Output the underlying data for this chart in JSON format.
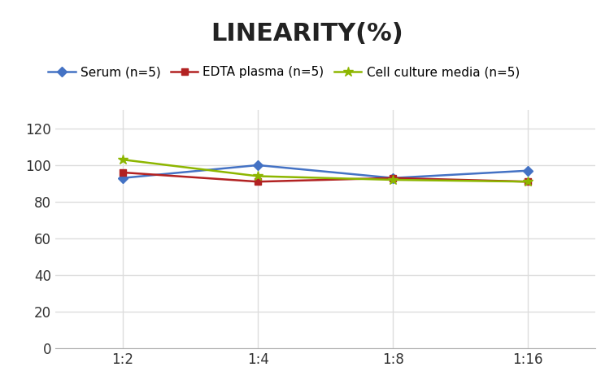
{
  "title": "LINEARITY(%)",
  "title_fontsize": 22,
  "title_fontweight": "bold",
  "x_labels": [
    "1:2",
    "1:4",
    "1:8",
    "1:16"
  ],
  "x_positions": [
    0,
    1,
    2,
    3
  ],
  "series": [
    {
      "label": "Serum (n=5)",
      "values": [
        93,
        100,
        93,
        97
      ],
      "color": "#4472C4",
      "marker": "D",
      "marker_size": 6,
      "linewidth": 1.8
    },
    {
      "label": "EDTA plasma (n=5)",
      "values": [
        96,
        91,
        93,
        91
      ],
      "color": "#B22222",
      "marker": "s",
      "marker_size": 6,
      "linewidth": 1.8
    },
    {
      "label": "Cell culture media (n=5)",
      "values": [
        103,
        94,
        92,
        91
      ],
      "color": "#8DB600",
      "marker": "*",
      "marker_size": 9,
      "linewidth": 1.8
    }
  ],
  "ylim": [
    0,
    130
  ],
  "yticks": [
    0,
    20,
    40,
    60,
    80,
    100,
    120
  ],
  "xlim": [
    -0.5,
    3.5
  ],
  "grid_color": "#DDDDDD",
  "background_color": "#FFFFFF",
  "legend_fontsize": 11,
  "tick_fontsize": 12
}
